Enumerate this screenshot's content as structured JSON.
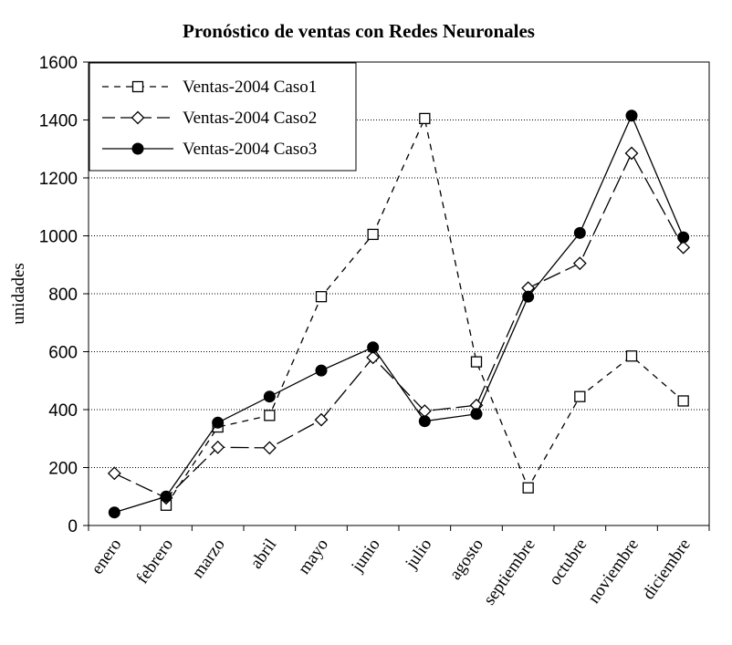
{
  "chart_data": {
    "type": "line",
    "title": "Pronóstico de ventas con Redes Neuronales",
    "xlabel": "",
    "ylabel": "unidades",
    "categories": [
      "enero",
      "febrero",
      "marzo",
      "abril",
      "mayo",
      "junio",
      "julio",
      "agosto",
      "septiembre",
      "octubre",
      "noviembre",
      "diciembre"
    ],
    "ylim": [
      0,
      1600
    ],
    "yticks": [
      "0",
      "200",
      "400",
      "600",
      "800",
      "1000",
      "1200",
      "1400",
      "1600"
    ],
    "grid": "horizontal dotted",
    "legend_position": "top-left",
    "series": [
      {
        "name": "Ventas-2004 Caso1",
        "marker": "square-open",
        "line": "short-dash",
        "values": [
          null,
          70,
          340,
          380,
          790,
          1005,
          1405,
          565,
          130,
          445,
          585,
          430
        ]
      },
      {
        "name": "Ventas-2004 Caso2",
        "marker": "diamond-open",
        "line": "long-dash",
        "values": [
          180,
          95,
          270,
          268,
          365,
          580,
          395,
          415,
          820,
          905,
          1285,
          960
        ]
      },
      {
        "name": "Ventas-2004 Caso3",
        "marker": "circle-filled",
        "line": "solid",
        "values": [
          45,
          100,
          355,
          445,
          535,
          615,
          360,
          385,
          790,
          1010,
          1415,
          995
        ]
      }
    ]
  }
}
